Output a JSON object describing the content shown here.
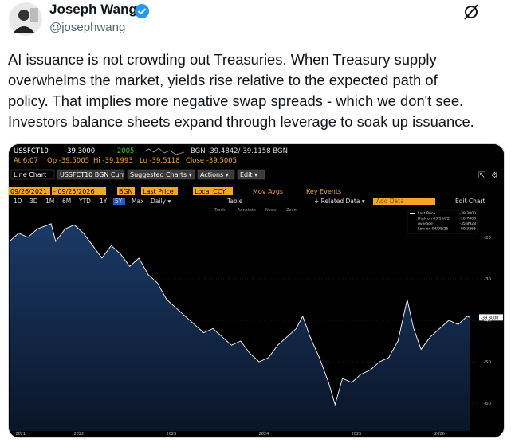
{
  "post": {
    "author": "Joseph Wang",
    "handle": "@josephwang",
    "text_lines": [
      "AI issuance is not crowding out Treasuries. When Treasury supply",
      "overwhelms the market, yields rise relative to the expected path of",
      "policy. That implies more negative swap spreads - which we don't see.",
      "Investors balance sheets expand through leverage to soak up issuance."
    ]
  },
  "terminal": {
    "quote": {
      "ticker": "USSFCT10",
      "last": "-39.3000",
      "change": "+.2005",
      "bid_ask": "BGN -39.4842/-39.1158 BGN"
    },
    "session": {
      "time": "At 6:07",
      "open": "Op -39.5005",
      "high": "Hi -39.1993",
      "low": "Lo -39.5118",
      "close": "Close -39.5005"
    },
    "tabs": [
      "Line Chart",
      "USSFCT10 BGN Curr",
      "Suggested Charts ▾",
      "Actions ▾",
      "Edit ▾"
    ],
    "fields": [
      "09/26/2021",
      "- 09/25/2026",
      "BGN",
      "Last Price",
      "Local CCY",
      "Mov Avgs",
      "Key Events"
    ],
    "periods": [
      "1D",
      "3D",
      "1M",
      "6M",
      "YTD",
      "1Y",
      "5Y",
      "Max",
      "Daily ▾"
    ],
    "tools": [
      "Table",
      "+ Related Data ▾",
      "Add Data",
      "Edit Chart"
    ],
    "chart_tools": [
      "Track",
      "Annotate",
      "News",
      "Zoom"
    ]
  },
  "chart_data": {
    "type": "area",
    "series": [
      {
        "name": "Last Price",
        "color": "#ffffff",
        "x": [
          2021.75,
          2021.85,
          2021.95,
          2022.05,
          2022.2,
          2022.25,
          2022.35,
          2022.45,
          2022.55,
          2022.65,
          2022.75,
          2022.85,
          2022.95,
          2023.05,
          2023.15,
          2023.25,
          2023.35,
          2023.45,
          2023.55,
          2023.65,
          2023.75,
          2023.85,
          2023.95,
          2024.05,
          2024.15,
          2024.25,
          2024.35,
          2024.45,
          2024.55,
          2024.65,
          2024.75,
          2024.85,
          2024.92,
          2025.0,
          2025.1,
          2025.2,
          2025.27,
          2025.35,
          2025.45,
          2025.55,
          2025.65,
          2025.75,
          2025.85,
          2025.95,
          2026.05,
          2026.12,
          2026.2,
          2026.3,
          2026.4,
          2026.5,
          2026.6,
          2026.7,
          2026.73
        ],
        "values": [
          -21,
          -19,
          -20,
          -18,
          -16.74,
          -21,
          -18,
          -17,
          -19,
          -22,
          -25,
          -22,
          -24,
          -27,
          -25,
          -29,
          -31,
          -35,
          -37,
          -39,
          -41,
          -43,
          -42,
          -44,
          -46,
          -45,
          -48,
          -50,
          -49,
          -46,
          -44,
          -42,
          -39,
          -44,
          -49,
          -55,
          -60.3265,
          -54,
          -55,
          -53,
          -52,
          -50,
          -49,
          -45,
          -35,
          -42,
          -47,
          -44,
          -42,
          -40,
          -41,
          -39,
          -39.3
        ]
      }
    ],
    "xlim": [
      2021.76,
      2026.81
    ],
    "xticks": [
      {
        "value": 2021.87,
        "label": "2021"
      },
      {
        "value": 2022.5,
        "label": "2022"
      },
      {
        "value": 2023.5,
        "label": "2023"
      },
      {
        "value": 2024.5,
        "label": "2024"
      },
      {
        "value": 2025.5,
        "label": "2025"
      },
      {
        "value": 2026.4,
        "label": "2026"
      }
    ],
    "ylim": [
      -66.7,
      -13.3
    ],
    "yticks": [
      -20,
      -30,
      -40,
      -50,
      -60
    ],
    "grid": true,
    "last_tag": {
      "value": -39.3,
      "label": "-39.3000"
    },
    "legend": [
      {
        "label": "Last Price",
        "value": "-39.3000"
      },
      {
        "label": "High on 03/16/22",
        "value": "-16.7400"
      },
      {
        "label": "Average",
        "value": "-35.8923"
      },
      {
        "label": "Low on 04/08/25",
        "value": "-60.3265"
      }
    ]
  }
}
